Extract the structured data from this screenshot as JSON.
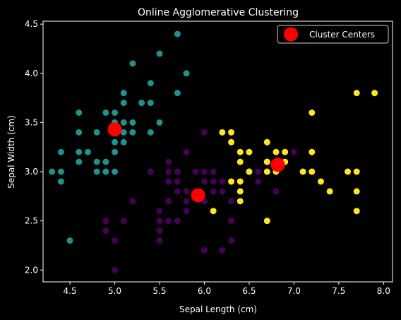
{
  "chart_data": {
    "type": "scatter",
    "title": "Online Agglomerative Clustering",
    "xlabel": "Sepal Length (cm)",
    "ylabel": "Sepal Width (cm)",
    "xlim": [
      4.2,
      8.1
    ],
    "ylim": [
      1.88,
      4.53
    ],
    "xticks": [
      "4.5",
      "5.0",
      "5.5",
      "6.0",
      "6.5",
      "7.0",
      "7.5",
      "8.0"
    ],
    "yticks": [
      "2.0",
      "2.5",
      "3.0",
      "3.5",
      "4.0",
      "4.5"
    ],
    "grid": false,
    "background": "#000000",
    "foreground": "#ffffff",
    "legend": {
      "position": "top-right",
      "label": "Cluster Centers",
      "color": "#ff0000"
    },
    "series": [
      {
        "cluster": 0,
        "color": "#440154",
        "points": [
          [
            5.0,
            2.0
          ],
          [
            6.0,
            2.2
          ],
          [
            6.2,
            2.2
          ],
          [
            5.0,
            2.3
          ],
          [
            5.5,
            2.3
          ],
          [
            6.3,
            2.3
          ],
          [
            4.9,
            2.4
          ],
          [
            5.5,
            2.4
          ],
          [
            4.9,
            2.5
          ],
          [
            5.1,
            2.5
          ],
          [
            5.5,
            2.5
          ],
          [
            5.6,
            2.5
          ],
          [
            5.7,
            2.5
          ],
          [
            6.3,
            2.5
          ],
          [
            5.5,
            2.6
          ],
          [
            5.8,
            2.6
          ],
          [
            5.2,
            2.7
          ],
          [
            5.6,
            2.7
          ],
          [
            5.8,
            2.7
          ],
          [
            6.0,
            2.7
          ],
          [
            6.3,
            2.7
          ],
          [
            5.7,
            2.8
          ],
          [
            6.1,
            2.8
          ],
          [
            6.2,
            2.8
          ],
          [
            5.8,
            2.8
          ],
          [
            5.6,
            2.9
          ],
          [
            5.7,
            2.9
          ],
          [
            6.0,
            2.9
          ],
          [
            6.1,
            2.9
          ],
          [
            6.2,
            2.9
          ],
          [
            6.6,
            2.9
          ],
          [
            5.4,
            3.0
          ],
          [
            5.6,
            3.0
          ],
          [
            5.7,
            3.0
          ],
          [
            5.9,
            3.0
          ],
          [
            6.0,
            3.0
          ],
          [
            6.1,
            3.0
          ],
          [
            6.6,
            3.0
          ],
          [
            5.6,
            3.1
          ],
          [
            6.9,
            3.1
          ],
          [
            5.8,
            3.2
          ],
          [
            6.0,
            3.4
          ],
          [
            6.8,
            2.8
          ],
          [
            6.4,
            2.8
          ],
          [
            7.0,
            3.2
          ]
        ]
      },
      {
        "cluster": 1,
        "color": "#21918c",
        "points": [
          [
            4.5,
            2.3
          ],
          [
            4.4,
            2.9
          ],
          [
            4.3,
            3.0
          ],
          [
            4.4,
            3.0
          ],
          [
            4.8,
            3.0
          ],
          [
            4.9,
            3.0
          ],
          [
            5.0,
            3.0
          ],
          [
            4.6,
            3.1
          ],
          [
            4.8,
            3.1
          ],
          [
            4.9,
            3.1
          ],
          [
            4.4,
            3.2
          ],
          [
            4.6,
            3.2
          ],
          [
            4.7,
            3.2
          ],
          [
            5.0,
            3.2
          ],
          [
            5.0,
            3.3
          ],
          [
            5.1,
            3.3
          ],
          [
            4.6,
            3.4
          ],
          [
            4.8,
            3.4
          ],
          [
            5.0,
            3.4
          ],
          [
            5.1,
            3.4
          ],
          [
            5.2,
            3.4
          ],
          [
            5.4,
            3.4
          ],
          [
            5.0,
            3.5
          ],
          [
            5.1,
            3.5
          ],
          [
            5.2,
            3.5
          ],
          [
            5.5,
            3.5
          ],
          [
            4.6,
            3.6
          ],
          [
            5.0,
            3.6
          ],
          [
            4.9,
            3.6
          ],
          [
            5.4,
            3.7
          ],
          [
            5.3,
            3.7
          ],
          [
            5.1,
            3.7
          ],
          [
            5.1,
            3.8
          ],
          [
            5.7,
            3.8
          ],
          [
            5.4,
            3.9
          ],
          [
            5.8,
            4.0
          ],
          [
            5.2,
            4.1
          ],
          [
            5.5,
            4.2
          ],
          [
            5.7,
            4.4
          ]
        ]
      },
      {
        "cluster": 2,
        "color": "#fde725",
        "points": [
          [
            6.7,
            2.5
          ],
          [
            6.1,
            2.6
          ],
          [
            7.7,
            2.6
          ],
          [
            6.4,
            2.7
          ],
          [
            7.7,
            2.8
          ],
          [
            7.4,
            2.8
          ],
          [
            6.4,
            2.8
          ],
          [
            6.3,
            2.9
          ],
          [
            6.4,
            2.9
          ],
          [
            7.3,
            2.9
          ],
          [
            6.5,
            3.0
          ],
          [
            6.7,
            3.0
          ],
          [
            6.8,
            3.0
          ],
          [
            7.1,
            3.0
          ],
          [
            7.2,
            3.0
          ],
          [
            7.6,
            3.0
          ],
          [
            7.7,
            3.0
          ],
          [
            6.4,
            3.1
          ],
          [
            6.7,
            3.1
          ],
          [
            6.9,
            3.1
          ],
          [
            6.4,
            3.2
          ],
          [
            6.5,
            3.2
          ],
          [
            6.8,
            3.2
          ],
          [
            6.9,
            3.2
          ],
          [
            7.2,
            3.2
          ],
          [
            6.3,
            3.3
          ],
          [
            6.7,
            3.3
          ],
          [
            6.2,
            3.4
          ],
          [
            6.3,
            3.4
          ],
          [
            7.2,
            3.6
          ],
          [
            7.7,
            3.8
          ],
          [
            7.9,
            3.8
          ],
          [
            6.5,
            3.0
          ],
          [
            6.7,
            3.1
          ]
        ]
      }
    ],
    "centers": [
      [
        5.0,
        3.43
      ],
      [
        5.93,
        2.76
      ],
      [
        6.82,
        3.07
      ]
    ]
  }
}
